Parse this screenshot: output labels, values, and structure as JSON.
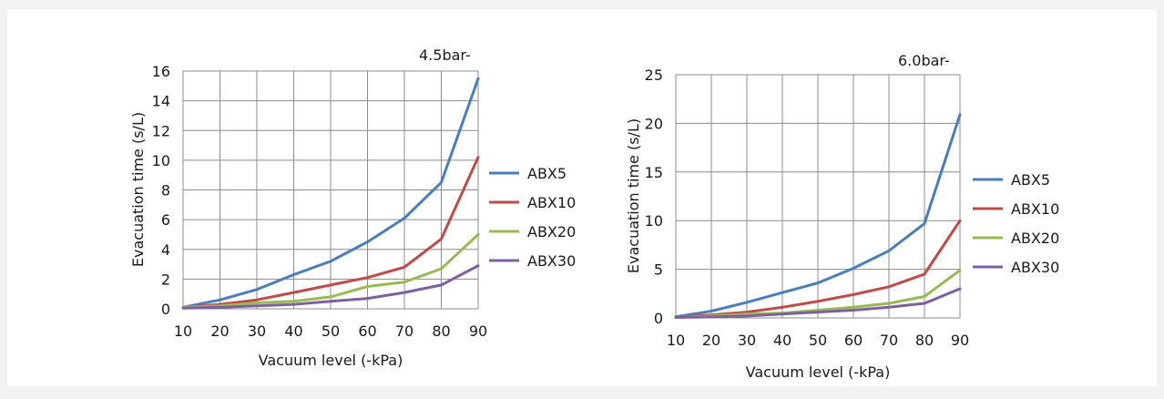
{
  "chart_data": [
    {
      "type": "line",
      "annotation": "4.5bar-",
      "xlabel": "Vacuum level (-kPa)",
      "ylabel": "Evacuation time (s/L)",
      "x": [
        10,
        20,
        30,
        40,
        50,
        60,
        70,
        80,
        90
      ],
      "xlim": [
        10,
        90
      ],
      "ylim": [
        0,
        16
      ],
      "yticks": [
        0,
        2,
        4,
        6,
        8,
        10,
        12,
        14,
        16
      ],
      "grid": true,
      "legend_position": "right",
      "series": [
        {
          "name": "ABX5",
          "color": "#4a7ebb",
          "values": [
            0.1,
            0.6,
            1.3,
            2.3,
            3.2,
            4.5,
            6.1,
            8.5,
            15.5
          ]
        },
        {
          "name": "ABX10",
          "color": "#be4b48",
          "values": [
            0.1,
            0.3,
            0.6,
            1.1,
            1.6,
            2.1,
            2.8,
            4.7,
            10.2
          ]
        },
        {
          "name": "ABX20",
          "color": "#98b954",
          "values": [
            0.1,
            0.2,
            0.4,
            0.5,
            0.8,
            1.5,
            1.8,
            2.7,
            5.0
          ]
        },
        {
          "name": "ABX30",
          "color": "#7d60a0",
          "values": [
            0.05,
            0.1,
            0.2,
            0.3,
            0.5,
            0.7,
            1.1,
            1.6,
            2.9
          ]
        }
      ]
    },
    {
      "type": "line",
      "annotation": "6.0bar-",
      "xlabel": "Vacuum level (-kPa)",
      "ylabel": "Evacuation time (s/L)",
      "x": [
        10,
        20,
        30,
        40,
        50,
        60,
        70,
        80,
        90
      ],
      "xlim": [
        10,
        90
      ],
      "ylim": [
        0,
        25
      ],
      "yticks": [
        0,
        5,
        10,
        15,
        20,
        25
      ],
      "grid": true,
      "legend_position": "right",
      "series": [
        {
          "name": "ABX5",
          "color": "#4a7ebb",
          "values": [
            0.1,
            0.7,
            1.6,
            2.6,
            3.6,
            5.1,
            6.9,
            9.7,
            20.9
          ]
        },
        {
          "name": "ABX10",
          "color": "#be4b48",
          "values": [
            0.1,
            0.3,
            0.6,
            1.1,
            1.7,
            2.4,
            3.2,
            4.5,
            10.0
          ]
        },
        {
          "name": "ABX20",
          "color": "#98b954",
          "values": [
            0.05,
            0.2,
            0.4,
            0.5,
            0.8,
            1.1,
            1.5,
            2.2,
            4.9
          ]
        },
        {
          "name": "ABX30",
          "color": "#7d60a0",
          "values": [
            0.05,
            0.1,
            0.2,
            0.4,
            0.6,
            0.8,
            1.1,
            1.5,
            3.0
          ]
        }
      ]
    }
  ]
}
